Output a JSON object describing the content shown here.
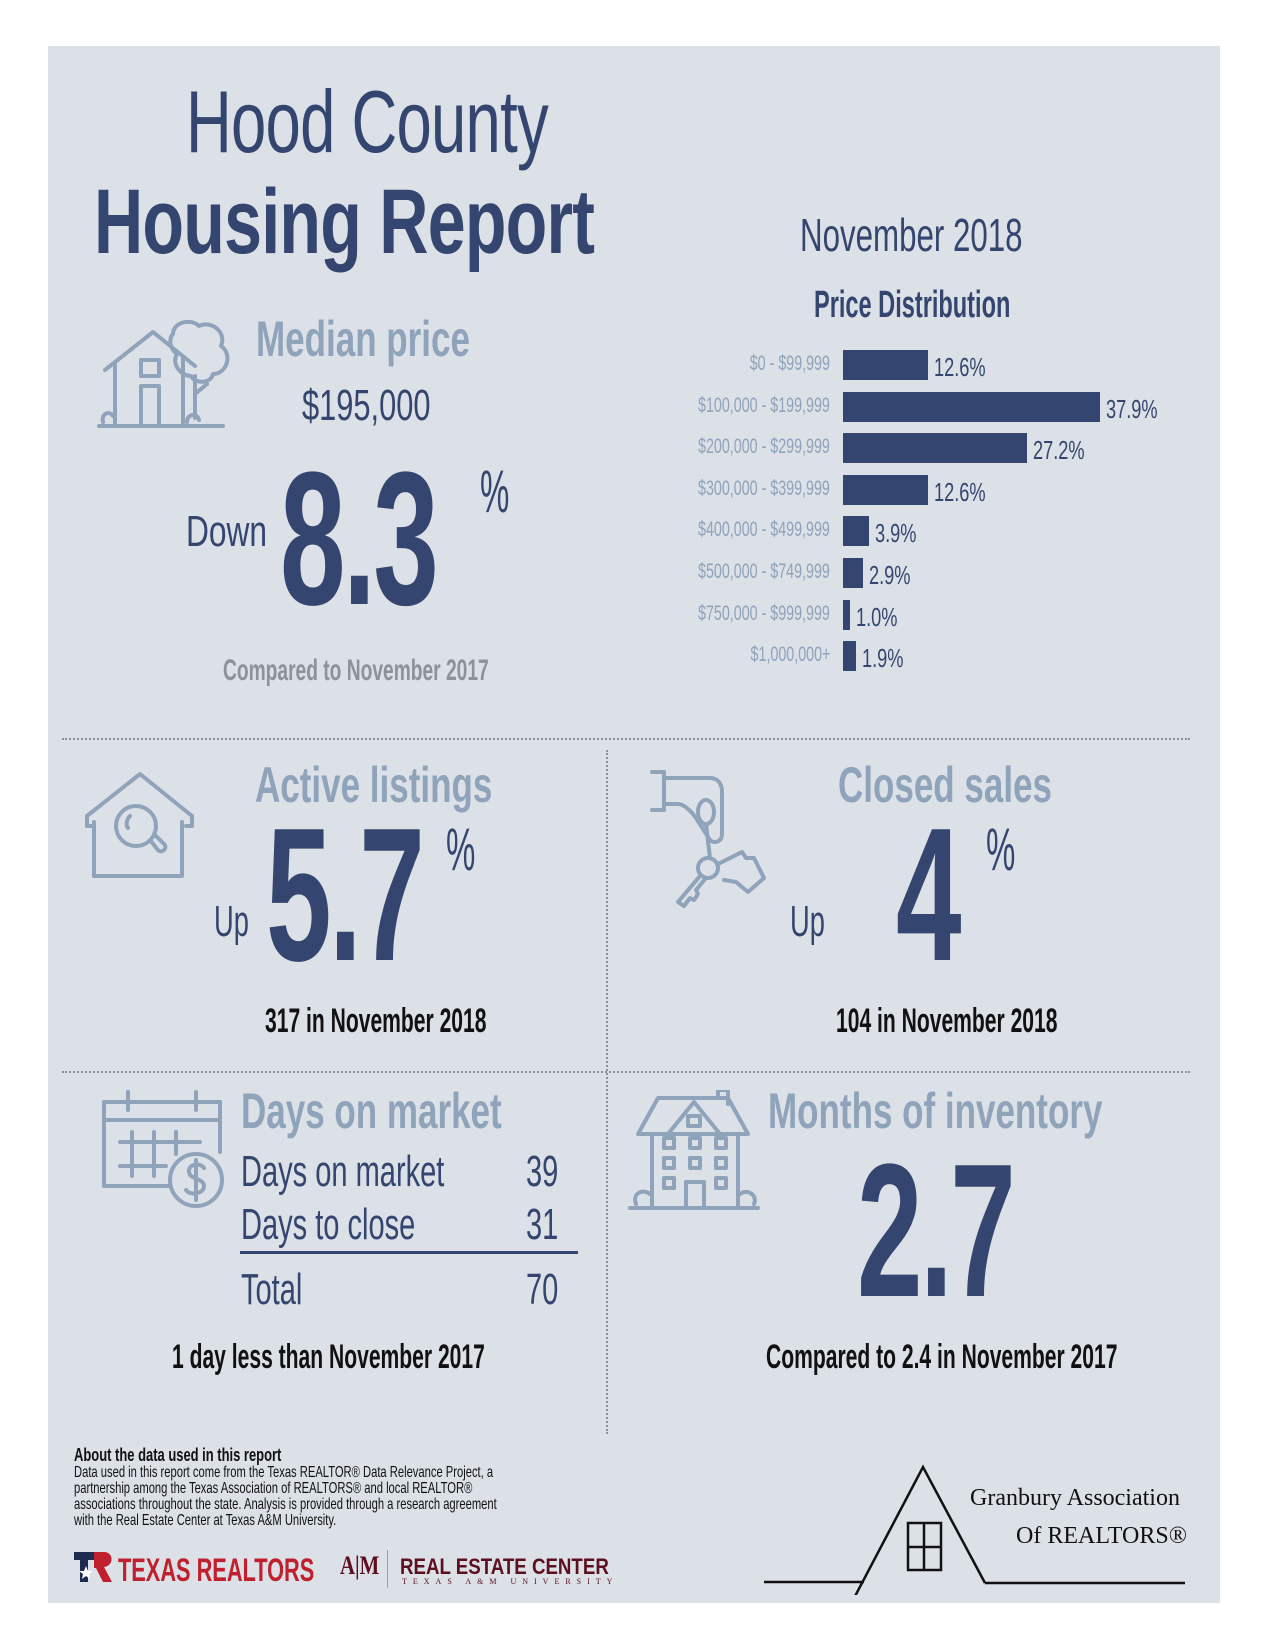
{
  "header": {
    "title_line1": "Hood County",
    "title_line2": "Housing Report",
    "period": "November 2018"
  },
  "median_price": {
    "heading": "Median price",
    "value": "$195,000",
    "direction": "Down",
    "change": "8.3",
    "percent_sign": "%",
    "comparison": "Compared to November 2017",
    "icon": "house-tree-icon"
  },
  "chart_data": {
    "type": "bar",
    "orientation": "horizontal",
    "title": "Price Distribution",
    "xlabel": "",
    "ylabel": "",
    "unit": "%",
    "grid": false,
    "categories": [
      "$0 - $99,999",
      "$100,000 - $199,999",
      "$200,000 - $299,999",
      "$300,000 - $399,999",
      "$400,000 - $499,999",
      "$500,000 - $749,999",
      "$750,000 - $999,999",
      "$1,000,000+"
    ],
    "values": [
      12.6,
      37.9,
      27.2,
      12.6,
      3.9,
      2.9,
      1.0,
      1.9
    ],
    "labels": [
      "12.6%",
      "37.9%",
      "27.2%",
      "12.6%",
      "3.9%",
      "2.9%",
      "1.0%",
      "1.9%"
    ],
    "xlim": [
      0,
      37.9
    ],
    "bar_color": "#34466f"
  },
  "active_listings": {
    "heading": "Active listings",
    "direction": "Up",
    "change": "5.7",
    "percent_sign": "%",
    "detail": "317 in November 2018",
    "icon": "house-search-icon"
  },
  "closed_sales": {
    "heading": "Closed sales",
    "direction": "Up",
    "change": "4",
    "percent_sign": "%",
    "detail": "104 in November 2018",
    "icon": "hand-keys-icon"
  },
  "days_on_market": {
    "heading": "Days on market",
    "rows": [
      {
        "label": "Days on market",
        "value": "39"
      },
      {
        "label": "Days to close",
        "value": "31"
      }
    ],
    "total_label": "Total",
    "total_value": "70",
    "detail": "1 day less than November 2017",
    "icon": "calendar-dollar-icon"
  },
  "months_inventory": {
    "heading": "Months of inventory",
    "value": "2.7",
    "detail": "Compared to 2.4 in November 2017",
    "icon": "apartment-building-icon"
  },
  "footer": {
    "about_title": "About the data used in this report",
    "about_lines": [
      "Data used in this report come from the Texas REALTOR® Data Relevance Project, a",
      "partnership among the Texas Association of REALTORS® and local REALTOR®",
      "associations throughout the state. Analysis is provided through a research agreement",
      "with the Real Estate Center at Texas A&M University."
    ],
    "texas_realtors_logo": "TEXAS REALTORS",
    "atm_logo": "A|M",
    "rec_logo_line1": "REAL ESTATE CENTER",
    "rec_logo_line2": "TEXAS A&M UNIVERSITY",
    "granbury_line1": "Granbury Association",
    "granbury_line2": "Of REALTORS®"
  },
  "colors": {
    "background": "#dce0e7",
    "navy": "#34466f",
    "slate": "#8fa3bb",
    "texas_red": "#c0202e",
    "aggie_maroon": "#5b0f1f"
  }
}
